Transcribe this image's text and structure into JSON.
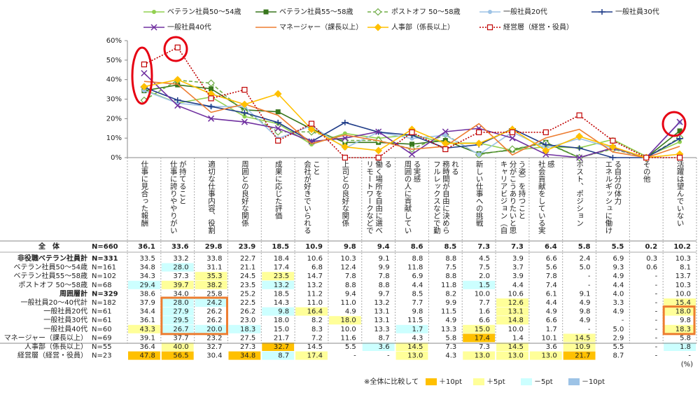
{
  "chart_data": {
    "type": "line",
    "categories": [
      "仕事に見合った報酬",
      "仕事に誇りややりがいが持てること",
      "適切な仕事内容、役割",
      "周囲との良好な関係",
      "成果に応じた評価",
      "会社が好きでいられること",
      "上司との良好な関係",
      "リモートワークなどで働く場所を自由に選べる",
      "周囲の人に貢献している実感",
      "フルレックスなどで勤務時間が自由に決められる",
      "新しい仕事への挑戦",
      "キャリアビジョン（自分がこうありたいと思う姿）を持つこと",
      "社会貢献をしている実感",
      "ポスト、ポジション",
      "エネルギッシュに働ける自分の体力",
      "その他",
      "活躍は望んでいない"
    ],
    "ylim": [
      0,
      60
    ],
    "yticks": [
      {
        "value": 0,
        "label": "0%"
      },
      {
        "value": 10,
        "label": "10%"
      },
      {
        "value": 20,
        "label": "20%"
      },
      {
        "value": 30,
        "label": "30%"
      },
      {
        "value": 40,
        "label": "40%"
      },
      {
        "value": 50,
        "label": "50%"
      },
      {
        "value": 60,
        "label": "60%"
      }
    ],
    "series": [
      {
        "name": "ベテラン社員50～54歳",
        "color": "#92d050",
        "dash": "solid",
        "marker": "circle",
        "values": [
          34.8,
          28.0,
          31.1,
          21.1,
          17.4,
          6.8,
          12.4,
          9.9,
          11.8,
          7.5,
          7.5,
          3.7,
          5.6,
          5.0,
          9.3,
          0.6,
          8.1
        ]
      },
      {
        "name": "ベテラン社員55～58歳",
        "color": "#38761d",
        "dash": "solid",
        "marker": "square",
        "values": [
          34.3,
          37.3,
          35.3,
          24.5,
          23.5,
          14.7,
          7.8,
          7.8,
          6.9,
          8.8,
          2.0,
          3.9,
          7.8,
          0,
          4.9,
          0,
          13.7
        ]
      },
      {
        "name": "ポストオフ 50～58歳",
        "color": "#70ad47",
        "dash": "dashed",
        "marker": "open-diamond",
        "values": [
          29.4,
          39.7,
          38.2,
          23.5,
          13.2,
          13.2,
          8.8,
          8.8,
          4.4,
          11.8,
          1.5,
          4.4,
          7.4,
          0,
          4.4,
          0,
          10.3
        ]
      },
      {
        "name": "一般社員20代",
        "color": "#9dc3e6",
        "dash": "solid",
        "marker": "circle",
        "values": [
          34.4,
          27.9,
          26.2,
          26.2,
          9.8,
          16.4,
          4.9,
          13.1,
          9.8,
          11.5,
          1.6,
          13.1,
          4.9,
          9.8,
          4.9,
          0,
          18.0
        ]
      },
      {
        "name": "一般社員30代",
        "color": "#1f3c88",
        "dash": "solid",
        "marker": "plus",
        "values": [
          36.1,
          29.5,
          26.2,
          23.0,
          18.0,
          8.2,
          18.0,
          13.1,
          11.5,
          4.9,
          6.6,
          14.8,
          6.6,
          4.9,
          0,
          0,
          9.8
        ]
      },
      {
        "name": "一般社員40代",
        "color": "#7030a0",
        "dash": "solid",
        "marker": "cross",
        "values": [
          43.3,
          26.7,
          20.0,
          18.3,
          15.0,
          8.3,
          10.0,
          13.3,
          1.7,
          13.3,
          15.0,
          10.0,
          1.7,
          0,
          5.0,
          0,
          18.3
        ]
      },
      {
        "name": "マネージャー（課長以上）",
        "color": "#ed7d31",
        "dash": "solid",
        "marker": "none",
        "values": [
          39.1,
          37.7,
          23.2,
          27.5,
          21.7,
          7.2,
          11.6,
          8.7,
          4.3,
          5.8,
          17.4,
          1.4,
          10.1,
          14.5,
          2.9,
          0,
          5.8
        ]
      },
      {
        "name": "人事部（係長以上）",
        "color": "#ffc000",
        "dash": "solid",
        "marker": "diamond",
        "values": [
          36.4,
          40.0,
          32.7,
          27.3,
          32.7,
          14.5,
          5.5,
          3.6,
          14.5,
          7.3,
          7.3,
          14.5,
          3.6,
          10.9,
          5.5,
          0,
          1.8
        ]
      },
      {
        "name": "経営層（経営・役員）",
        "color": "#c00000",
        "dash": "dotted",
        "marker": "open-square",
        "values": [
          47.8,
          56.5,
          30.4,
          34.8,
          8.7,
          17.4,
          0,
          0,
          13.0,
          4.3,
          13.0,
          13.0,
          13.0,
          21.7,
          8.7,
          0,
          0
        ]
      }
    ]
  },
  "table": {
    "unit": "(%)",
    "rows": [
      {
        "label": "全　体",
        "n": "N=660",
        "bold": true,
        "values": [
          "36.1",
          "33.6",
          "29.8",
          "23.9",
          "18.5",
          "10.9",
          "9.8",
          "9.4",
          "8.6",
          "8.5",
          "7.3",
          "7.3",
          "6.4",
          "5.8",
          "5.5",
          "0.2",
          "10.2"
        ]
      },
      {
        "label": "非役職ベテラン社員計",
        "n": "N=331",
        "bold": true,
        "values": [
          "33.5",
          "33.2",
          "33.8",
          "22.7",
          "18.4",
          "10.6",
          "10.3",
          "9.1",
          "8.8",
          "8.8",
          "4.5",
          "3.9",
          "6.6",
          "2.4",
          "6.9",
          "0.3",
          "10.3"
        ]
      },
      {
        "label": "ベテラン社員50～54歳",
        "n": "N=161",
        "values": [
          "34.8",
          "28.0",
          "31.1",
          "21.1",
          "17.4",
          "6.8",
          "12.4",
          "9.9",
          "11.8",
          "7.5",
          "7.5",
          "3.7",
          "5.6",
          "5.0",
          "9.3",
          "0.6",
          "8.1"
        ],
        "shades": [
          null,
          2,
          null,
          null,
          null,
          null,
          null,
          null,
          null,
          null,
          null,
          null,
          null,
          null,
          null,
          null,
          null
        ]
      },
      {
        "label": "ベテラン社員55～58歳",
        "n": "N=102",
        "values": [
          "34.3",
          "37.3",
          "35.3",
          "24.5",
          "23.5",
          "14.7",
          "7.8",
          "7.8",
          "6.9",
          "8.8",
          "2.0",
          "3.9",
          "7.8",
          "-",
          "4.9",
          "-",
          "13.7"
        ],
        "shades": [
          null,
          null,
          1,
          null,
          1,
          null,
          null,
          null,
          null,
          null,
          null,
          null,
          null,
          null,
          null,
          null,
          null
        ]
      },
      {
        "label": "ポストオフ 50～58歳",
        "n": "N=68",
        "values": [
          "29.4",
          "39.7",
          "38.2",
          "23.5",
          "13.2",
          "13.2",
          "8.8",
          "8.8",
          "4.4",
          "11.8",
          "1.5",
          "4.4",
          "7.4",
          "-",
          "4.4",
          "-",
          "10.3"
        ],
        "shades": [
          2,
          1,
          1,
          null,
          2,
          null,
          null,
          null,
          null,
          null,
          2,
          null,
          null,
          null,
          null,
          null,
          null
        ]
      },
      {
        "label": "周囲層計",
        "n": "N=329",
        "bold": true,
        "values": [
          "38.6",
          "34.0",
          "25.8",
          "25.2",
          "18.5",
          "11.2",
          "9.4",
          "9.7",
          "8.5",
          "8.2",
          "10.0",
          "10.6",
          "6.1",
          "9.1",
          "4.0",
          "-",
          "10.0"
        ]
      },
      {
        "label": "一般社員20～40代計",
        "n": "N=182",
        "values": [
          "37.9",
          "28.0",
          "24.2",
          "22.5",
          "14.3",
          "11.0",
          "11.0",
          "13.2",
          "7.7",
          "9.9",
          "7.7",
          "12.6",
          "4.4",
          "4.9",
          "3.3",
          "-",
          "15.4"
        ],
        "shades": [
          null,
          2,
          2,
          null,
          null,
          null,
          null,
          null,
          null,
          null,
          null,
          1,
          null,
          null,
          null,
          null,
          1
        ]
      },
      {
        "label": "一般社員20代",
        "n": "N=61",
        "values": [
          "34.4",
          "27.9",
          "26.2",
          "26.2",
          "9.8",
          "16.4",
          "4.9",
          "13.1",
          "9.8",
          "11.5",
          "1.6",
          "13.1",
          "4.9",
          "9.8",
          "4.9",
          "-",
          "18.0"
        ],
        "shades": [
          null,
          2,
          null,
          null,
          2,
          1,
          null,
          null,
          null,
          null,
          null,
          1,
          null,
          null,
          null,
          null,
          1
        ]
      },
      {
        "label": "一般社員30代",
        "n": "N=61",
        "values": [
          "36.1",
          "29.5",
          "26.2",
          "23.0",
          "18.0",
          "8.2",
          "18.0",
          "13.1",
          "11.5",
          "4.9",
          "6.6",
          "14.8",
          "6.6",
          "4.9",
          "-",
          "-",
          "9.8"
        ],
        "shades": [
          null,
          2,
          null,
          null,
          null,
          null,
          1,
          null,
          null,
          null,
          null,
          1,
          null,
          null,
          null,
          null,
          null
        ]
      },
      {
        "label": "一般社員40代",
        "n": "N=60",
        "values": [
          "43.3",
          "26.7",
          "20.0",
          "18.3",
          "15.0",
          "8.3",
          "10.0",
          "13.3",
          "1.7",
          "13.3",
          "15.0",
          "10.0",
          "1.7",
          "-",
          "5.0",
          "-",
          "18.3"
        ],
        "shades": [
          1,
          2,
          2,
          2,
          null,
          null,
          null,
          null,
          2,
          null,
          1,
          null,
          null,
          null,
          null,
          null,
          1
        ]
      },
      {
        "label": "マネージャー（課長以上）",
        "n": "N=69",
        "values": [
          "39.1",
          "37.7",
          "23.2",
          "27.5",
          "21.7",
          "7.2",
          "11.6",
          "8.7",
          "4.3",
          "5.8",
          "17.4",
          "1.4",
          "10.1",
          "14.5",
          "2.9",
          "-",
          "5.8"
        ],
        "shades": [
          null,
          null,
          null,
          null,
          null,
          null,
          null,
          null,
          null,
          null,
          0,
          null,
          null,
          1,
          null,
          null,
          null
        ]
      },
      {
        "label": "人事部（係長以上）",
        "n": "N=55",
        "values": [
          "36.4",
          "40.0",
          "32.7",
          "27.3",
          "32.7",
          "14.5",
          "5.5",
          "3.6",
          "14.5",
          "7.3",
          "7.3",
          "14.5",
          "3.6",
          "10.9",
          "5.5",
          "-",
          "1.8"
        ],
        "shades": [
          null,
          1,
          null,
          null,
          0,
          null,
          null,
          2,
          1,
          null,
          null,
          1,
          null,
          1,
          null,
          null,
          2
        ]
      },
      {
        "label": "経営層（経営・役員）",
        "n": "N=23",
        "values": [
          "47.8",
          "56.5",
          "30.4",
          "34.8",
          "8.7",
          "17.4",
          "-",
          "-",
          "13.0",
          "4.3",
          "13.0",
          "13.0",
          "13.0",
          "21.7",
          "8.7",
          "-",
          "-"
        ],
        "shades": [
          0,
          0,
          null,
          0,
          2,
          1,
          null,
          null,
          1,
          null,
          1,
          1,
          1,
          0,
          null,
          null,
          null
        ]
      }
    ]
  },
  "shade_legend": {
    "note": "※全体に比較して",
    "items": [
      {
        "label": "＋10pt",
        "color": "#ffc000"
      },
      {
        "label": "＋5pt",
        "color": "#ffff99"
      },
      {
        "label": "－5pt",
        "color": "#ccffff"
      },
      {
        "label": "－10pt",
        "color": "#9dc3e6"
      }
    ]
  }
}
